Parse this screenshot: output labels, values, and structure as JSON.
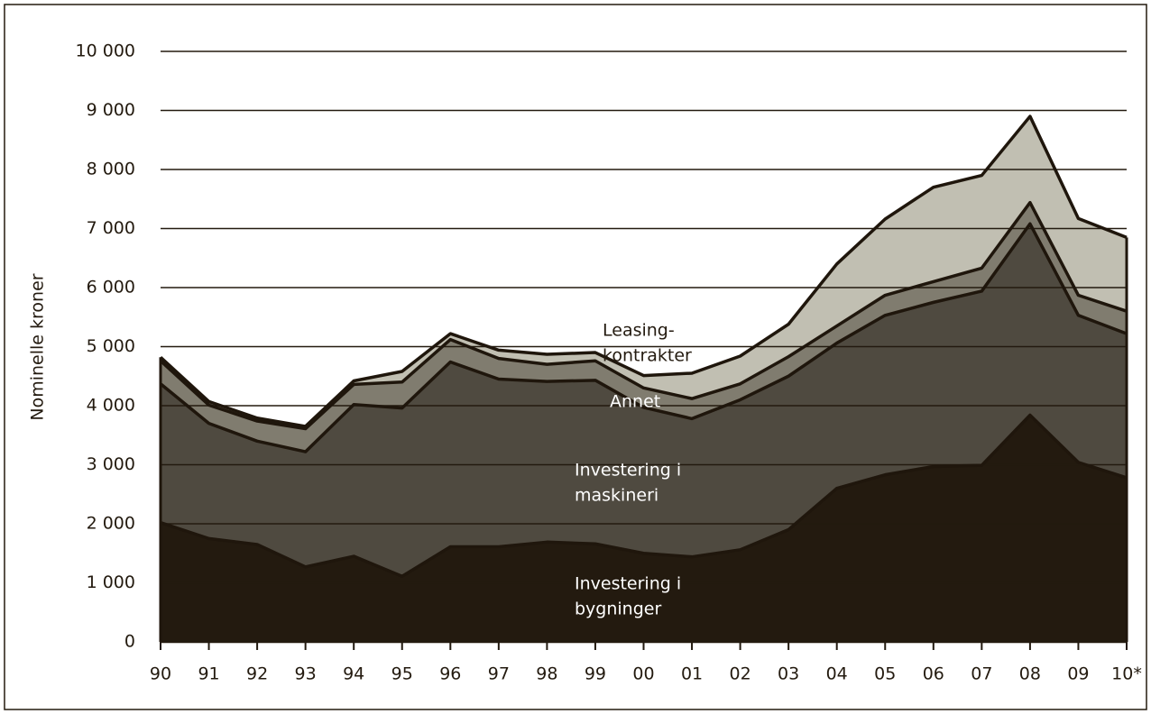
{
  "chart_data": {
    "type": "stacked_area",
    "y_label": "Nominelle kroner",
    "categories": [
      "90",
      "91",
      "92",
      "93",
      "94",
      "95",
      "96",
      "97",
      "98",
      "99",
      "00",
      "01",
      "02",
      "03",
      "04",
      "05",
      "06",
      "07",
      "08",
      "09",
      "10*"
    ],
    "series": [
      {
        "name": [
          "Investering i",
          "bygninger"
        ],
        "color": "#231a0f",
        "label_color": "#ffffff",
        "values": [
          2020,
          1750,
          1650,
          1270,
          1450,
          1110,
          1610,
          1610,
          1690,
          1660,
          1500,
          1440,
          1560,
          1900,
          2600,
          2830,
          2970,
          2990,
          3840,
          3040,
          2780
        ]
      },
      {
        "name": [
          "Investering i",
          "maskineri"
        ],
        "color": "#4f4a40",
        "label_color": "#ffffff",
        "values": [
          2350,
          1950,
          1750,
          1950,
          2570,
          2850,
          3130,
          2840,
          2720,
          2770,
          2470,
          2340,
          2540,
          2600,
          2460,
          2700,
          2780,
          2950,
          3240,
          2490,
          2440
        ]
      },
      {
        "name": [
          "Annet"
        ],
        "color": "#807c6f",
        "label_color": "#ffffff",
        "values": [
          390,
          310,
          340,
          390,
          340,
          440,
          380,
          350,
          290,
          330,
          330,
          340,
          270,
          330,
          290,
          340,
          350,
          390,
          360,
          340,
          380
        ]
      },
      {
        "name": [
          "Leasing-",
          "kontrakter"
        ],
        "color": "#c1bfb2",
        "label_color": "#231a0f",
        "values": [
          60,
          60,
          50,
          40,
          60,
          180,
          100,
          140,
          170,
          140,
          210,
          430,
          470,
          550,
          1050,
          1290,
          1600,
          1570,
          1460,
          1300,
          1250
        ]
      }
    ],
    "ylim": [
      0,
      10000
    ],
    "yticks": [
      0,
      {
        "value": 1000,
        "label": "1 000"
      },
      {
        "value": 2000,
        "label": "2 000"
      },
      {
        "value": 3000,
        "label": "3 000"
      },
      {
        "value": 4000,
        "label": "4 000"
      },
      {
        "value": 5000,
        "label": "5 000"
      },
      {
        "value": 6000,
        "label": "6 000"
      },
      {
        "value": 7000,
        "label": "7 000"
      },
      {
        "value": 8000,
        "label": "8 000"
      },
      {
        "value": 9000,
        "label": "9 000"
      },
      {
        "value": 10000,
        "label": "10 000"
      }
    ],
    "grid": true
  }
}
